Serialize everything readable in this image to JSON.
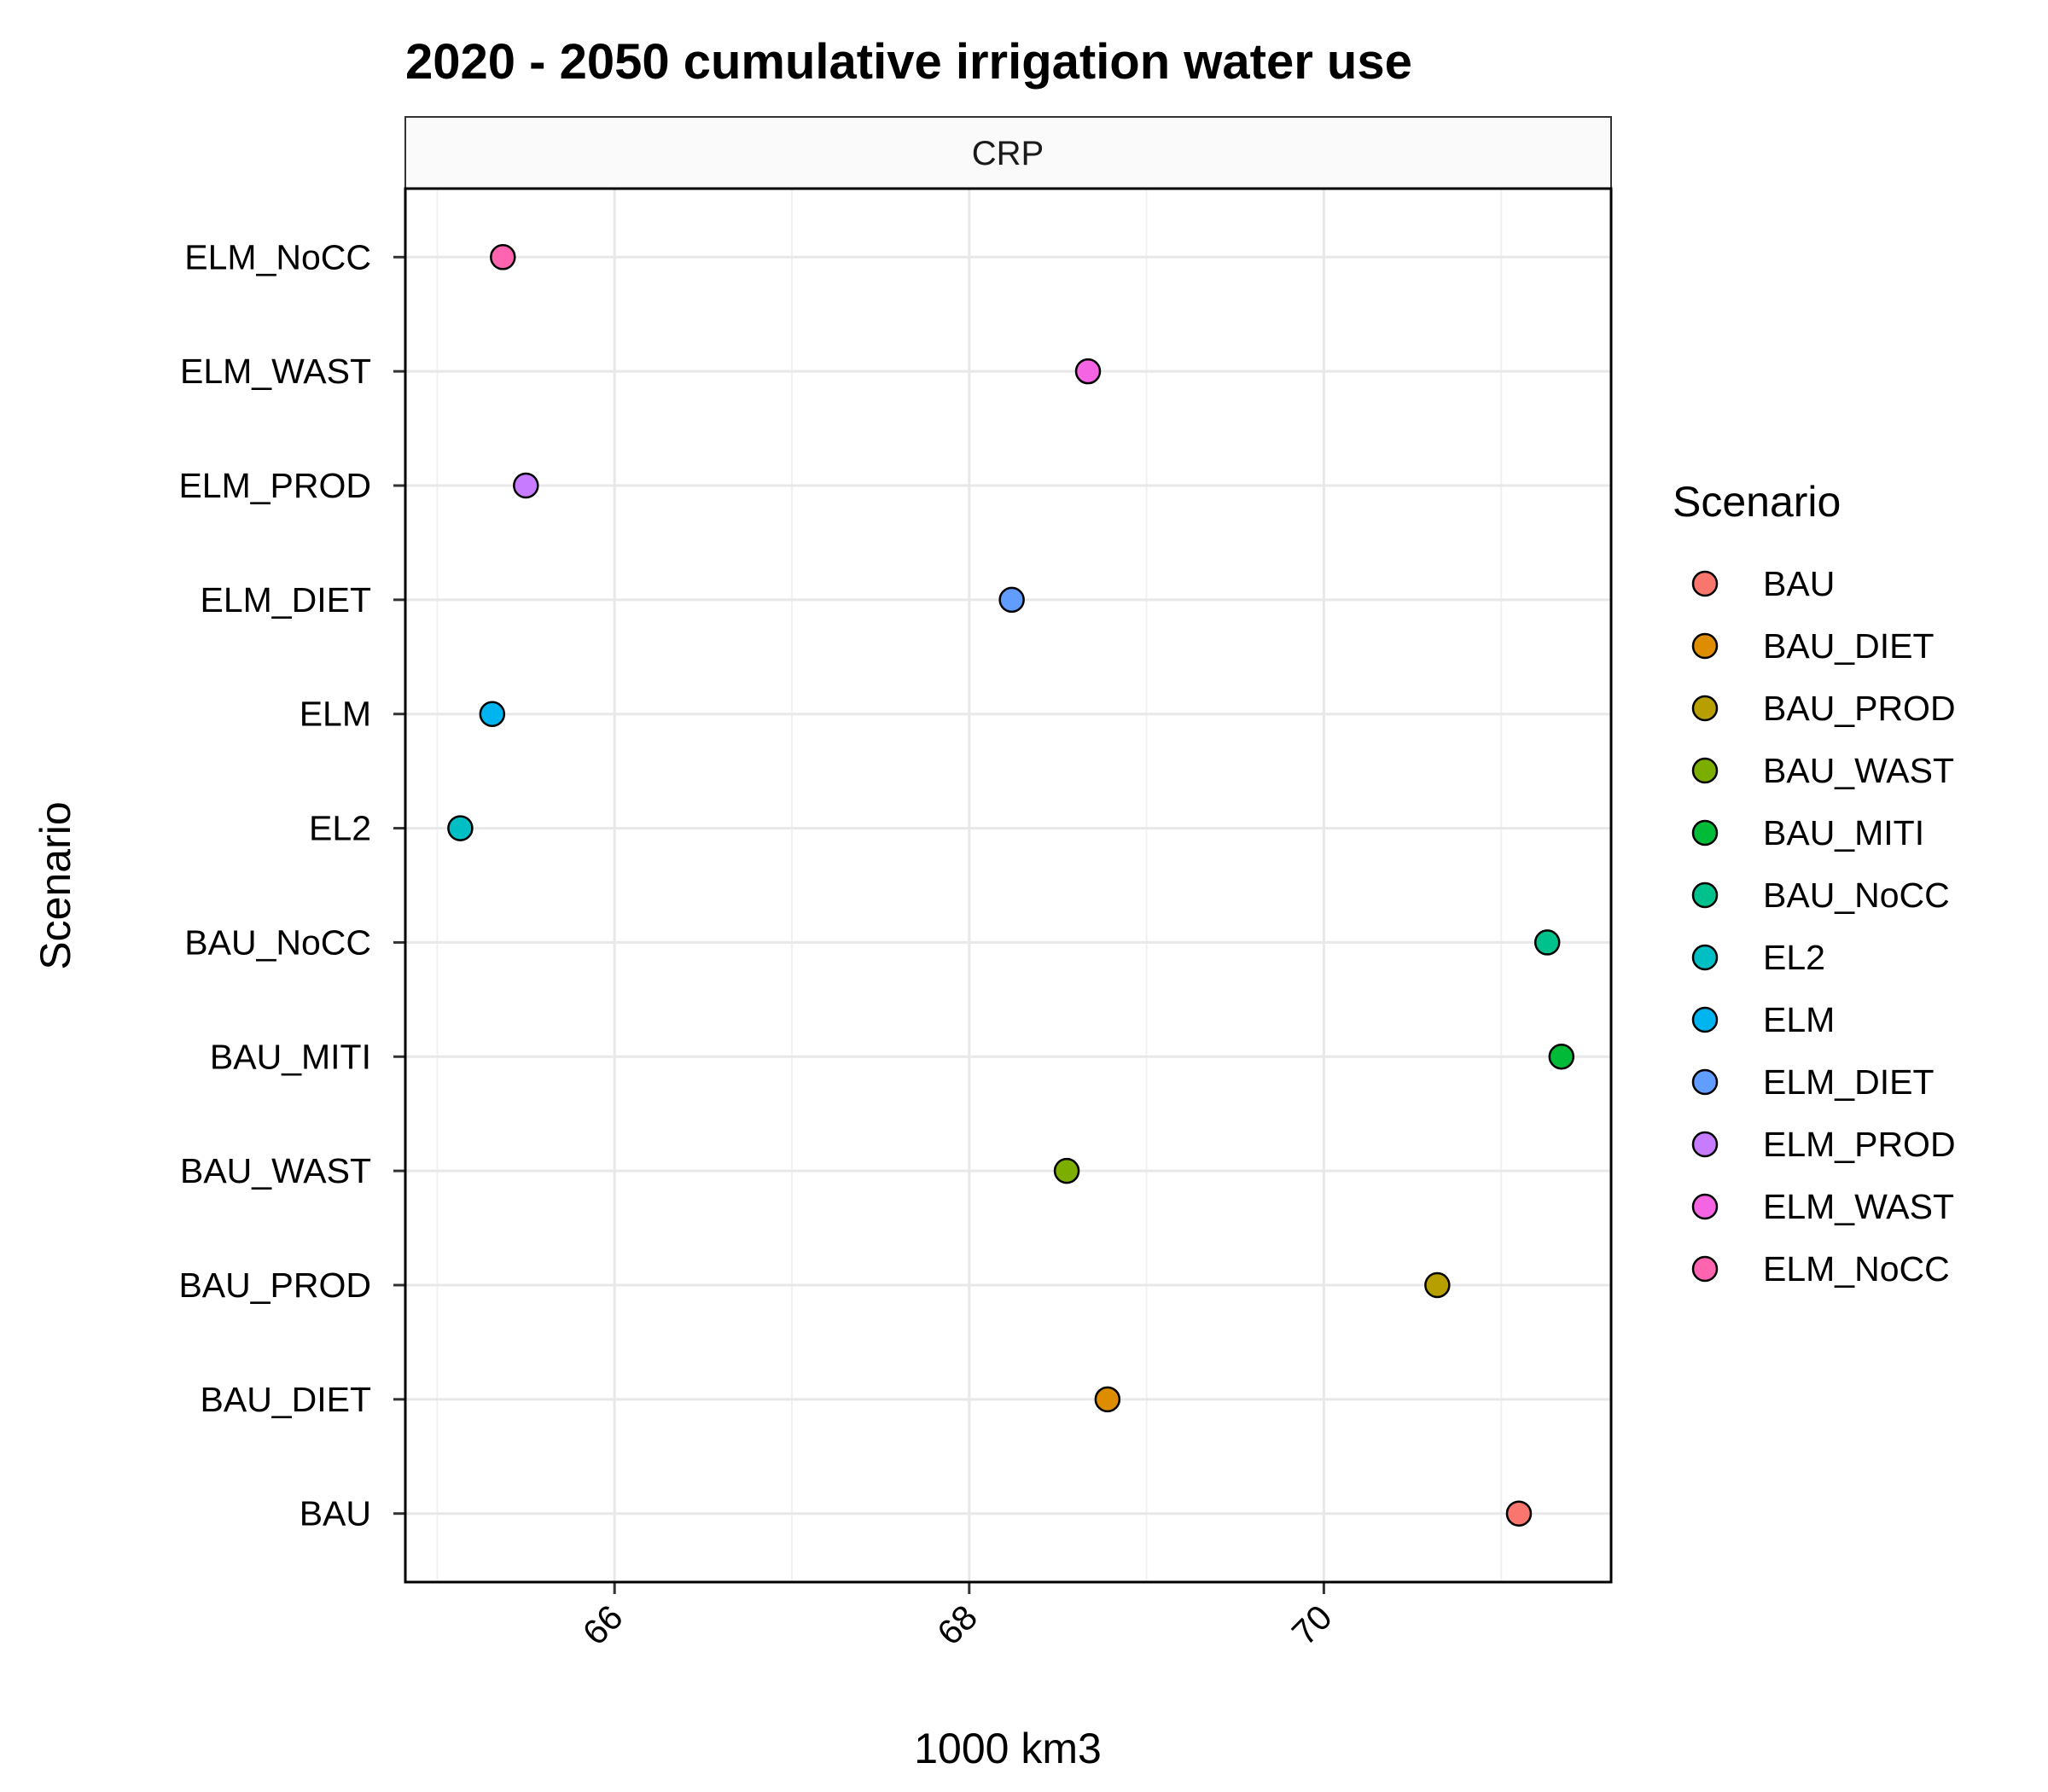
{
  "chart_data": {
    "type": "scatter",
    "title": "2020 - 2050 cumulative irrigation water use",
    "facet_label": "CRP",
    "xlabel": "1000 km3",
    "ylabel": "Scenario",
    "xlim": [
      64.82,
      71.62
    ],
    "x_ticks": [
      66,
      68,
      70
    ],
    "x_tick_labels": [
      "66",
      "68",
      "70"
    ],
    "grid": true,
    "categories": [
      "BAU",
      "BAU_DIET",
      "BAU_PROD",
      "BAU_WAST",
      "BAU_MITI",
      "BAU_NoCC",
      "EL2",
      "ELM",
      "ELM_DIET",
      "ELM_PROD",
      "ELM_WAST",
      "ELM_NoCC"
    ],
    "values": [
      71.1,
      68.78,
      70.64,
      68.55,
      71.34,
      71.26,
      65.13,
      65.31,
      68.24,
      65.5,
      68.67,
      65.37
    ],
    "colors": [
      "#F8766D",
      "#DE8C00",
      "#B79F00",
      "#7CAE00",
      "#00BA38",
      "#00C08B",
      "#00BFC4",
      "#00B4F0",
      "#619CFF",
      "#C77CFF",
      "#F564E3",
      "#FF64B0"
    ],
    "legend": {
      "title": "Scenario",
      "position": "right",
      "entries": [
        "BAU",
        "BAU_DIET",
        "BAU_PROD",
        "BAU_WAST",
        "BAU_MITI",
        "BAU_NoCC",
        "EL2",
        "ELM",
        "ELM_DIET",
        "ELM_PROD",
        "ELM_WAST",
        "ELM_NoCC"
      ]
    }
  }
}
